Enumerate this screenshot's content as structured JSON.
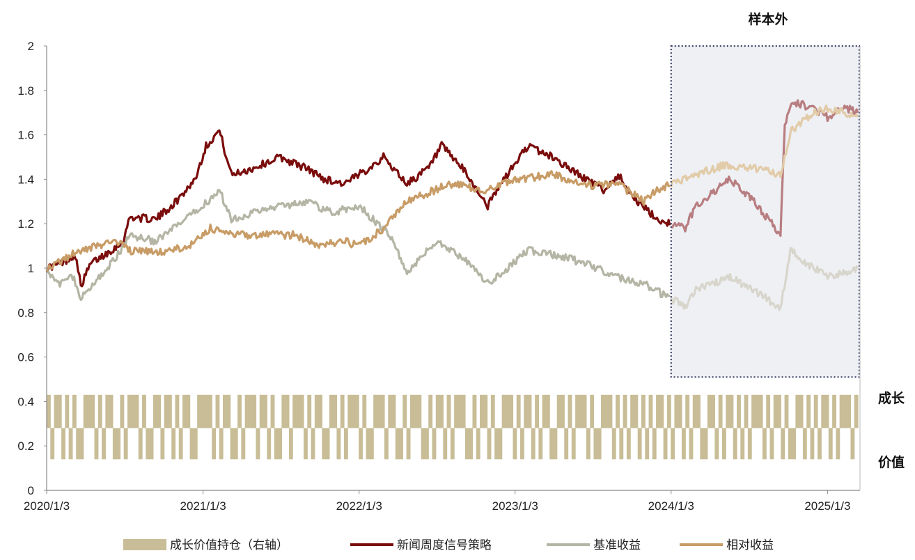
{
  "chart_data": {
    "type": "line",
    "title": "",
    "xlabel": "",
    "ylabel": "",
    "ylim": [
      0,
      2
    ],
    "yticks": [
      "0",
      "0.2",
      "0.4",
      "0.6",
      "0.8",
      "1",
      "1.2",
      "1.4",
      "1.6",
      "1.8",
      "2"
    ],
    "xticks": [
      "2020/1/3",
      "2021/1/3",
      "2022/1/3",
      "2023/1/3",
      "2024/1/3",
      "2025/1/3"
    ],
    "xrange": [
      "2020/1/3",
      "2025/3/15"
    ],
    "out_of_sample": {
      "label": "样本外",
      "start": "2024/1/3",
      "end": "2025/3/15",
      "ylim": [
        0.51,
        2
      ]
    },
    "right_axis_labels": {
      "high": "成长",
      "low": "价值"
    },
    "legend_position": "bottom",
    "series": [
      {
        "name": "新闻周度信号策略",
        "color": "#7a0c0c",
        "points": [
          [
            "2020/1/3",
            1.0
          ],
          [
            "2020/2/3",
            1.02
          ],
          [
            "2020/3/10",
            1.06
          ],
          [
            "2020/3/23",
            0.92
          ],
          [
            "2020/4/15",
            1.02
          ],
          [
            "2020/6/1",
            1.08
          ],
          [
            "2020/7/1",
            1.12
          ],
          [
            "2020/7/15",
            1.23
          ],
          [
            "2020/9/15",
            1.22
          ],
          [
            "2020/11/1",
            1.3
          ],
          [
            "2020/12/15",
            1.4
          ],
          [
            "2021/1/10",
            1.55
          ],
          [
            "2021/2/10",
            1.62
          ],
          [
            "2021/3/10",
            1.42
          ],
          [
            "2021/5/1",
            1.45
          ],
          [
            "2021/7/1",
            1.5
          ],
          [
            "2021/9/1",
            1.45
          ],
          [
            "2021/10/15",
            1.4
          ],
          [
            "2021/12/1",
            1.38
          ],
          [
            "2022/1/3",
            1.42
          ],
          [
            "2022/3/1",
            1.5
          ],
          [
            "2022/4/25",
            1.38
          ],
          [
            "2022/6/15",
            1.45
          ],
          [
            "2022/7/15",
            1.55
          ],
          [
            "2022/9/1",
            1.45
          ],
          [
            "2022/10/31",
            1.28
          ],
          [
            "2022/12/1",
            1.38
          ],
          [
            "2023/2/1",
            1.55
          ],
          [
            "2023/4/1",
            1.5
          ],
          [
            "2023/6/1",
            1.42
          ],
          [
            "2023/8/1",
            1.35
          ],
          [
            "2023/9/1",
            1.42
          ],
          [
            "2023/10/15",
            1.3
          ],
          [
            "2023/12/1",
            1.22
          ],
          [
            "2024/1/3",
            1.2
          ],
          [
            "2024/2/5",
            1.18
          ],
          [
            "2024/3/1",
            1.28
          ],
          [
            "2024/5/20",
            1.4
          ],
          [
            "2024/7/15",
            1.3
          ],
          [
            "2024/9/15",
            1.15
          ],
          [
            "2024/9/25",
            1.65
          ],
          [
            "2024/10/10",
            1.75
          ],
          [
            "2024/12/1",
            1.72
          ],
          [
            "2025/1/3",
            1.68
          ],
          [
            "2025/2/15",
            1.72
          ],
          [
            "2025/3/15",
            1.7
          ]
        ]
      },
      {
        "name": "基准收益",
        "color": "#b5b5a5",
        "points": [
          [
            "2020/1/3",
            1.0
          ],
          [
            "2020/2/3",
            0.92
          ],
          [
            "2020/3/1",
            0.98
          ],
          [
            "2020/3/23",
            0.86
          ],
          [
            "2020/5/1",
            0.95
          ],
          [
            "2020/6/15",
            1.05
          ],
          [
            "2020/7/15",
            1.15
          ],
          [
            "2020/9/15",
            1.12
          ],
          [
            "2020/12/15",
            1.25
          ],
          [
            "2021/2/10",
            1.35
          ],
          [
            "2021/3/10",
            1.22
          ],
          [
            "2021/5/1",
            1.25
          ],
          [
            "2021/7/1",
            1.28
          ],
          [
            "2021/9/1",
            1.3
          ],
          [
            "2021/11/1",
            1.25
          ],
          [
            "2022/1/3",
            1.28
          ],
          [
            "2022/3/15",
            1.15
          ],
          [
            "2022/4/25",
            0.98
          ],
          [
            "2022/7/1",
            1.12
          ],
          [
            "2022/9/1",
            1.05
          ],
          [
            "2022/10/31",
            0.93
          ],
          [
            "2022/12/15",
            1.0
          ],
          [
            "2023/2/1",
            1.08
          ],
          [
            "2023/5/1",
            1.05
          ],
          [
            "2023/7/15",
            1.0
          ],
          [
            "2023/9/1",
            0.96
          ],
          [
            "2023/11/1",
            0.93
          ],
          [
            "2024/1/3",
            0.86
          ],
          [
            "2024/2/5",
            0.83
          ],
          [
            "2024/3/1",
            0.9
          ],
          [
            "2024/5/20",
            0.96
          ],
          [
            "2024/7/15",
            0.9
          ],
          [
            "2024/9/15",
            0.82
          ],
          [
            "2024/10/8",
            1.08
          ],
          [
            "2024/12/1",
            1.0
          ],
          [
            "2025/1/3",
            0.96
          ],
          [
            "2025/2/15",
            0.98
          ],
          [
            "2025/3/15",
            1.0
          ]
        ]
      },
      {
        "name": "相对收益",
        "color": "#c89c66",
        "points": [
          [
            "2020/1/3",
            1.0
          ],
          [
            "2020/3/1",
            1.06
          ],
          [
            "2020/5/1",
            1.1
          ],
          [
            "2020/6/15",
            1.12
          ],
          [
            "2020/7/15",
            1.08
          ],
          [
            "2020/10/1",
            1.07
          ],
          [
            "2020/12/1",
            1.1
          ],
          [
            "2021/1/20",
            1.18
          ],
          [
            "2021/3/10",
            1.15
          ],
          [
            "2021/6/1",
            1.15
          ],
          [
            "2021/8/1",
            1.15
          ],
          [
            "2021/10/1",
            1.1
          ],
          [
            "2021/12/1",
            1.12
          ],
          [
            "2022/1/3",
            1.1
          ],
          [
            "2022/3/1",
            1.18
          ],
          [
            "2022/4/25",
            1.3
          ],
          [
            "2022/6/15",
            1.34
          ],
          [
            "2022/8/1",
            1.38
          ],
          [
            "2022/10/31",
            1.35
          ],
          [
            "2023/1/3",
            1.4
          ],
          [
            "2023/4/1",
            1.42
          ],
          [
            "2023/7/1",
            1.37
          ],
          [
            "2023/9/1",
            1.38
          ],
          [
            "2023/10/31",
            1.3
          ],
          [
            "2023/12/1",
            1.35
          ],
          [
            "2024/1/3",
            1.38
          ],
          [
            "2024/3/1",
            1.42
          ],
          [
            "2024/5/1",
            1.46
          ],
          [
            "2024/7/15",
            1.45
          ],
          [
            "2024/9/15",
            1.42
          ],
          [
            "2024/10/10",
            1.62
          ],
          [
            "2024/12/1",
            1.7
          ],
          [
            "2025/1/3",
            1.72
          ],
          [
            "2025/2/15",
            1.7
          ],
          [
            "2025/3/15",
            1.68
          ]
        ]
      },
      {
        "name": "成长价值持仓（右轴）",
        "color": "#c8bd96",
        "type": "step",
        "axis": "right",
        "levels": {
          "high": 0.43,
          "low": 0.14
        },
        "pattern": [
          1,
          0,
          1,
          1,
          0,
          1,
          0,
          1,
          0,
          0,
          1,
          1,
          1,
          0,
          1,
          0,
          1,
          1,
          0,
          0,
          1,
          0,
          1,
          1,
          1,
          0,
          1,
          0,
          0,
          1,
          1,
          0,
          1,
          1,
          0,
          1,
          0,
          1,
          1,
          0,
          0,
          1,
          1,
          1,
          1,
          0,
          1,
          0,
          1,
          1,
          0,
          0,
          1,
          0,
          1,
          1,
          1,
          0,
          1,
          1,
          0,
          1,
          0,
          0,
          1,
          1,
          0,
          1,
          1,
          1,
          0,
          1,
          0,
          1,
          1,
          0,
          0,
          1,
          1,
          0,
          1,
          0,
          1,
          1,
          1,
          0,
          1,
          0,
          0,
          1,
          1,
          1,
          0,
          1,
          1,
          0,
          0,
          1,
          0,
          1,
          1,
          1,
          0,
          0,
          1,
          0,
          1,
          1,
          0,
          1,
          0,
          1,
          1,
          1,
          0,
          0,
          1,
          0,
          1,
          1,
          0,
          1,
          0,
          0,
          1,
          1,
          1,
          0,
          1,
          0,
          1,
          1,
          0,
          1,
          0,
          1,
          1,
          0,
          0,
          1,
          1,
          0,
          1,
          0,
          1,
          1,
          1,
          0,
          1,
          0,
          0,
          1,
          1,
          1,
          0,
          1,
          0,
          1,
          0,
          1,
          1,
          0,
          1,
          0,
          1,
          0,
          1,
          1,
          0,
          1,
          0,
          1,
          1,
          0,
          1,
          0,
          1,
          1,
          0,
          0,
          1,
          1,
          0,
          1,
          0,
          1,
          1,
          0,
          1,
          0,
          1,
          0,
          1,
          1,
          1,
          0,
          1,
          0,
          1,
          1,
          0,
          1,
          0,
          0,
          1,
          1,
          0,
          1,
          0,
          1,
          0,
          1,
          1,
          0,
          1,
          0,
          1,
          1,
          1,
          0,
          1
        ]
      }
    ]
  }
}
